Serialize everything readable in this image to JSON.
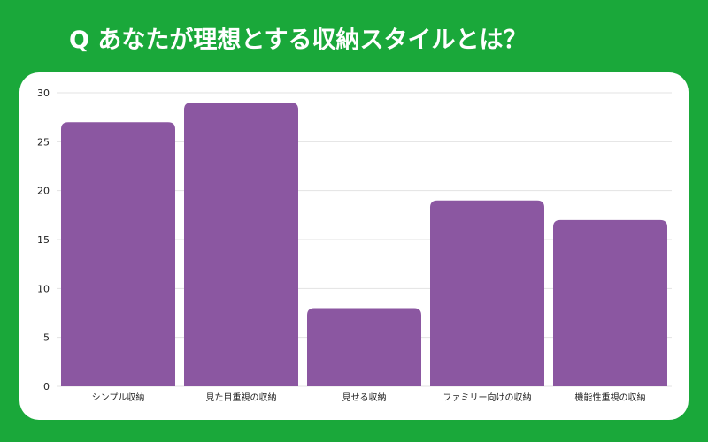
{
  "header": {
    "title": "Q あなたが理想とする収納スタイルとは？"
  },
  "colors": {
    "background": "#1aa83a",
    "bar": "#8b57a1",
    "grid": "#e3e3e3"
  },
  "chart_data": {
    "type": "bar",
    "title": "Q あなたが理想とする収納スタイルとは？",
    "xlabel": "",
    "ylabel": "",
    "categories": [
      "シンプル収納",
      "見た目重視の収納",
      "見せる収納",
      "ファミリー向けの収納",
      "機能性重視の収納"
    ],
    "values": [
      27,
      29,
      8,
      19,
      17
    ],
    "ylim": [
      0,
      30
    ],
    "yticks": [
      0,
      5,
      10,
      15,
      20,
      25,
      30
    ],
    "grid": true,
    "legend": "none"
  }
}
